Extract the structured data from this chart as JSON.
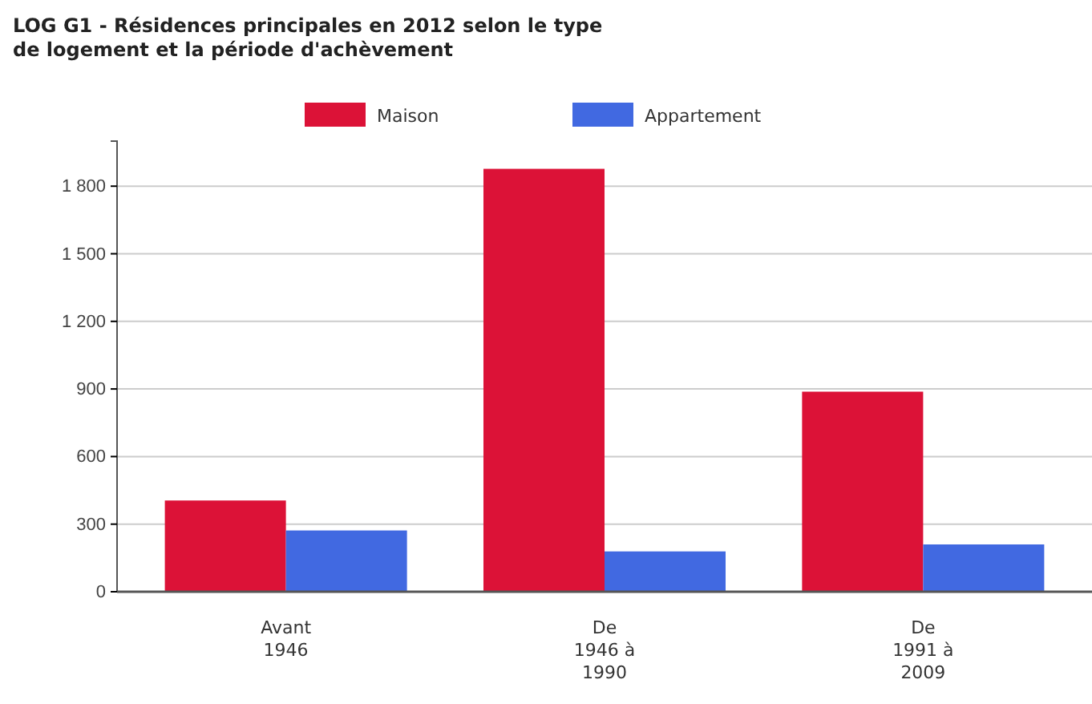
{
  "chart_data": {
    "type": "bar",
    "title": "LOG G1 - Résidences principales en 2012 selon le type de logement et la période d'achèvement",
    "categories": [
      "Avant\n1946",
      "De\n1946 à\n1990",
      "De\n1991 à\n2009"
    ],
    "series": [
      {
        "name": "Maison",
        "color": "#dc1237",
        "values": [
          405,
          1877,
          888
        ]
      },
      {
        "name": "Appartement",
        "color": "#4169e1",
        "values": [
          272,
          179,
          210
        ]
      }
    ],
    "ylim": [
      0,
      2000
    ],
    "yticks": [
      0,
      300,
      600,
      900,
      {
        "value": 1200,
        "label": "1 200"
      },
      {
        "value": 1500,
        "label": "1 500"
      },
      {
        "value": 1800,
        "label": "1 800"
      }
    ],
    "grid": "y",
    "legend": "top"
  }
}
